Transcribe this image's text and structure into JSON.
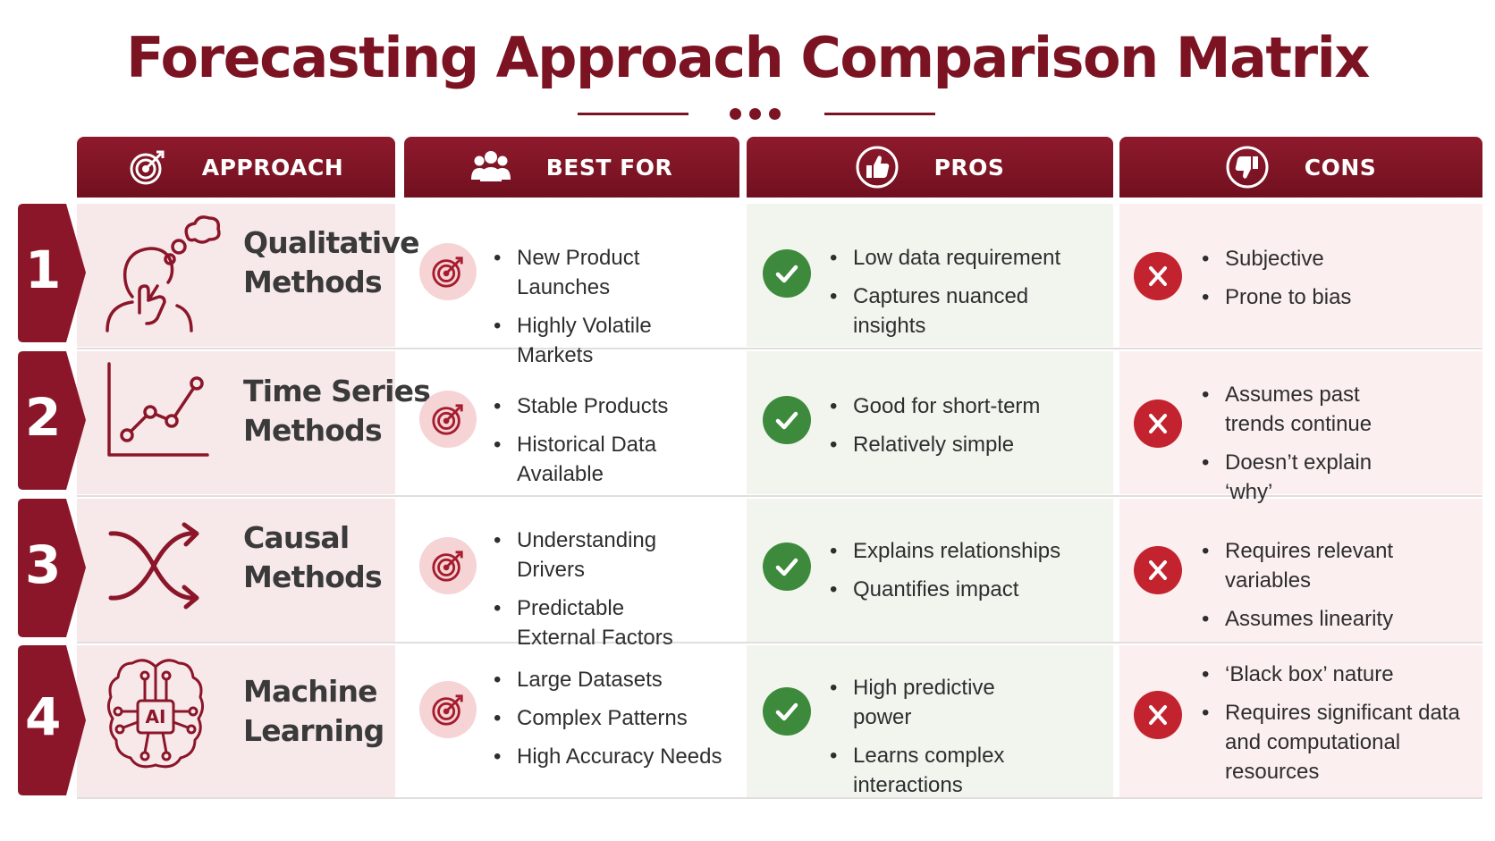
{
  "title": "Forecasting Approach Comparison Matrix",
  "headers": {
    "approach": "APPROACH",
    "best_for": "BEST FOR",
    "pros": "PROS",
    "cons": "CONS"
  },
  "colors": {
    "primary": "#7b1322",
    "check": "#3e8a3c",
    "x": "#c3232e"
  },
  "rows": [
    {
      "num": "1",
      "name_line1": "Qualitative",
      "name_line2": "Methods",
      "icon": "thinking-person-icon",
      "best_for": [
        "New Product Launches",
        "Highly Volatile Markets"
      ],
      "pros": [
        "Low data requirement",
        "Captures nuanced insights"
      ],
      "cons": [
        "Subjective",
        "Prone to bias"
      ]
    },
    {
      "num": "2",
      "name_line1": "Time Series",
      "name_line2": "Methods",
      "icon": "line-chart-icon",
      "best_for": [
        "Stable Products",
        "Historical Data Available"
      ],
      "pros": [
        "Good for short-term",
        "Relatively simple"
      ],
      "cons": [
        "Assumes past trends continue",
        "Doesn’t explain ‘why’"
      ]
    },
    {
      "num": "3",
      "name_line1": "Causal",
      "name_line2": "Methods",
      "icon": "crossing-arrows-icon",
      "best_for": [
        "Understanding Drivers",
        "Predictable External Factors"
      ],
      "pros": [
        "Explains relationships",
        "Quantifies impact"
      ],
      "cons": [
        "Requires relevant variables",
        "Assumes linearity"
      ]
    },
    {
      "num": "4",
      "name_line1": "Machine",
      "name_line2": "Learning",
      "icon": "ai-brain-icon",
      "ai_label": "AI",
      "best_for": [
        "Large Datasets",
        "Complex Patterns",
        "High Accuracy Needs"
      ],
      "pros": [
        "High predictive power",
        "Learns complex interactions"
      ],
      "cons": [
        "‘Black box’ nature",
        "Requires significant data and computational resources"
      ]
    }
  ]
}
